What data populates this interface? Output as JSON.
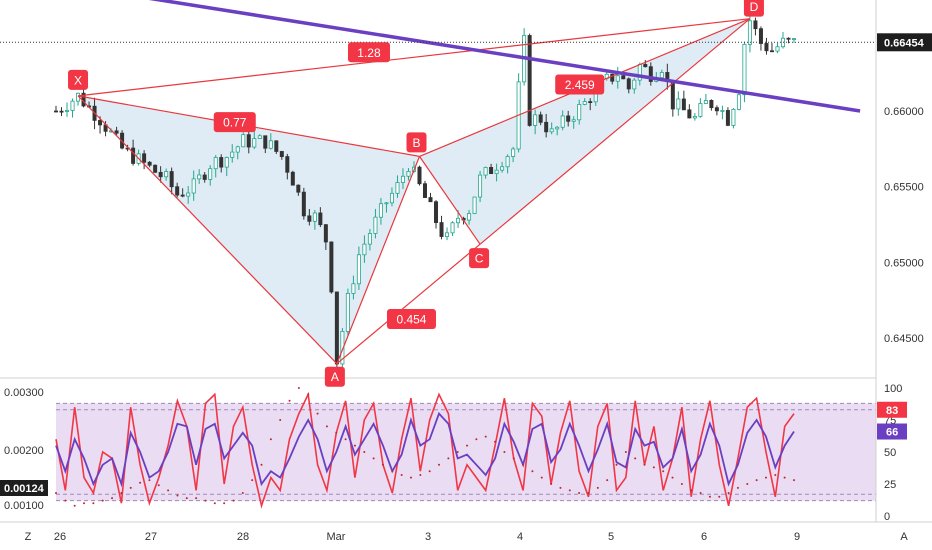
{
  "chart_data": [
    {
      "type": "candlestick",
      "title": "",
      "x_tick_labels": [
        "26",
        "27",
        "28",
        "Mar",
        "3",
        "4",
        "5",
        "6",
        "9"
      ],
      "y_ticks": [
        0.645,
        0.65,
        0.655,
        0.66
      ],
      "y_tick_labels": [
        "0.64500",
        "0.65000",
        "0.65500",
        "0.66000"
      ],
      "ylim": [
        0.6425,
        0.6675
      ],
      "last_price": 0.66454,
      "last_price_label": "0.66454",
      "colors": {
        "up": "#22a68d",
        "down": "#333333",
        "pattern_line": "#e8383d",
        "pattern_fill": "#d6e6f2",
        "trendline": "#6a3fc1",
        "label_bg": "#f23645"
      },
      "price_path": [
        [
          0,
          0.66
        ],
        [
          4,
          0.661
        ],
        [
          8,
          0.6595
        ],
        [
          12,
          0.6575
        ],
        [
          16,
          0.6565
        ],
        [
          20,
          0.6555
        ],
        [
          22,
          0.6545
        ],
        [
          25,
          0.655
        ],
        [
          28,
          0.6565
        ],
        [
          31,
          0.657
        ],
        [
          34,
          0.658
        ],
        [
          36,
          0.658
        ],
        [
          38,
          0.658
        ],
        [
          41,
          0.657
        ],
        [
          43,
          0.6555
        ],
        [
          45,
          0.6535
        ],
        [
          47,
          0.653
        ],
        [
          49,
          0.6515
        ],
        [
          50,
          0.6485
        ],
        [
          51,
          0.6435
        ],
        [
          53,
          0.6475
        ],
        [
          55,
          0.6505
        ],
        [
          57,
          0.652
        ],
        [
          60,
          0.654
        ],
        [
          62,
          0.655
        ],
        [
          64,
          0.6565
        ],
        [
          66,
          0.655
        ],
        [
          68,
          0.6535
        ],
        [
          70,
          0.652
        ],
        [
          71,
          0.6515
        ],
        [
          73,
          0.653
        ],
        [
          75,
          0.6535
        ],
        [
          77,
          0.6555
        ],
        [
          80,
          0.6565
        ],
        [
          83,
          0.6575
        ],
        [
          84,
          0.6615
        ],
        [
          85,
          0.6645
        ],
        [
          86,
          0.6595
        ],
        [
          88,
          0.6595
        ],
        [
          90,
          0.6585
        ],
        [
          93,
          0.6595
        ],
        [
          96,
          0.6605
        ],
        [
          98,
          0.6615
        ],
        [
          100,
          0.662
        ],
        [
          102,
          0.6625
        ],
        [
          104,
          0.6615
        ],
        [
          106,
          0.663
        ],
        [
          108,
          0.6625
        ],
        [
          110,
          0.663
        ],
        [
          112,
          0.6605
        ],
        [
          114,
          0.66
        ],
        [
          116,
          0.6595
        ],
        [
          118,
          0.6605
        ],
        [
          120,
          0.6605
        ],
        [
          122,
          0.6595
        ],
        [
          124,
          0.6615
        ],
        [
          125,
          0.6645
        ],
        [
          126,
          0.666
        ],
        [
          128,
          0.6645
        ],
        [
          130,
          0.664
        ],
        [
          132,
          0.6645
        ],
        [
          134,
          0.6645
        ]
      ],
      "harmonic_pattern": {
        "points": [
          {
            "label": "X",
            "bar": 4,
            "price": 0.661
          },
          {
            "label": "A",
            "bar": 51,
            "price": 0.6433
          },
          {
            "label": "B",
            "bar": 66,
            "price": 0.657
          },
          {
            "label": "C",
            "bar": 77,
            "price": 0.6512
          },
          {
            "label": "D",
            "bar": 126,
            "price": 0.6661
          }
        ],
        "ratios": [
          {
            "value": "0.77",
            "between": [
              "X",
              "B"
            ]
          },
          {
            "value": "0.454",
            "between": [
              "A",
              "C"
            ]
          },
          {
            "value": "2.459",
            "between": [
              "B",
              "D"
            ]
          },
          {
            "value": "1.28",
            "between": [
              "X",
              "D"
            ]
          }
        ]
      },
      "trendline": [
        [
          16,
          0.6675
        ],
        [
          146,
          0.66
        ]
      ]
    },
    {
      "type": "line",
      "title": "",
      "left_axis_ticks": [
        "0.00300",
        "0.00200",
        "0.00100"
      ],
      "left_axis_tag": "0.00124",
      "right_axis_ticks": [
        100,
        75,
        50,
        25,
        0
      ],
      "ylim": [
        0,
        100
      ],
      "bands": {
        "upper": [
          83,
          88
        ],
        "lower": [
          12,
          17
        ]
      },
      "tags": [
        {
          "value": 83,
          "label": "83",
          "color": "#f23645"
        },
        {
          "value": 66,
          "label": "66",
          "color": "#6a3fc1"
        }
      ],
      "series": [
        {
          "color": "#f23645",
          "values": [
            60,
            20,
            85,
            30,
            18,
            50,
            45,
            10,
            85,
            40,
            10,
            30,
            55,
            90,
            70,
            20,
            88,
            95,
            25,
            70,
            85,
            40,
            8,
            30,
            20,
            60,
            80,
            95,
            40,
            20,
            65,
            90,
            30,
            75,
            88,
            40,
            18,
            60,
            92,
            35,
            75,
            95,
            80,
            20,
            40,
            30,
            20,
            55,
            92,
            45,
            20,
            88,
            78,
            25,
            65,
            90,
            35,
            15,
            70,
            88,
            20,
            30,
            90,
            40,
            70,
            20,
            45,
            85,
            15,
            60,
            90,
            40,
            8,
            45,
            85,
            92,
            50,
            15,
            70,
            80
          ]
        },
        {
          "color": "#6a3fc1",
          "values": [
            55,
            35,
            60,
            45,
            25,
            40,
            45,
            25,
            65,
            50,
            30,
            35,
            50,
            72,
            70,
            40,
            68,
            72,
            45,
            55,
            65,
            55,
            25,
            35,
            30,
            45,
            62,
            75,
            60,
            35,
            50,
            70,
            48,
            60,
            72,
            55,
            35,
            48,
            75,
            55,
            60,
            80,
            72,
            45,
            48,
            40,
            32,
            45,
            72,
            58,
            40,
            68,
            72,
            42,
            52,
            72,
            55,
            35,
            52,
            72,
            42,
            38,
            68,
            55,
            58,
            38,
            45,
            68,
            35,
            48,
            72,
            55,
            25,
            40,
            65,
            75,
            62,
            38,
            55,
            66
          ]
        },
        {
          "color": "#c2262e",
          "dotted": true,
          "values": [
            18,
            12,
            8,
            10,
            10,
            12,
            14,
            18,
            22,
            26,
            28,
            24,
            20,
            16,
            14,
            14,
            12,
            10,
            10,
            12,
            18,
            28,
            40,
            60,
            75,
            90,
            100,
            95,
            80,
            70,
            65,
            60,
            55,
            50,
            45,
            40,
            35,
            32,
            30,
            32,
            35,
            40,
            45,
            50,
            55,
            60,
            62,
            58,
            50,
            45,
            40,
            35,
            30,
            25,
            22,
            20,
            18,
            18,
            22,
            28,
            40,
            50,
            45,
            40,
            38,
            35,
            30,
            25,
            20,
            18,
            15,
            15,
            18,
            22,
            25,
            28,
            30,
            32,
            30,
            28
          ]
        }
      ]
    }
  ],
  "axis": {
    "left_corner": "Z",
    "right_corner": "A"
  }
}
